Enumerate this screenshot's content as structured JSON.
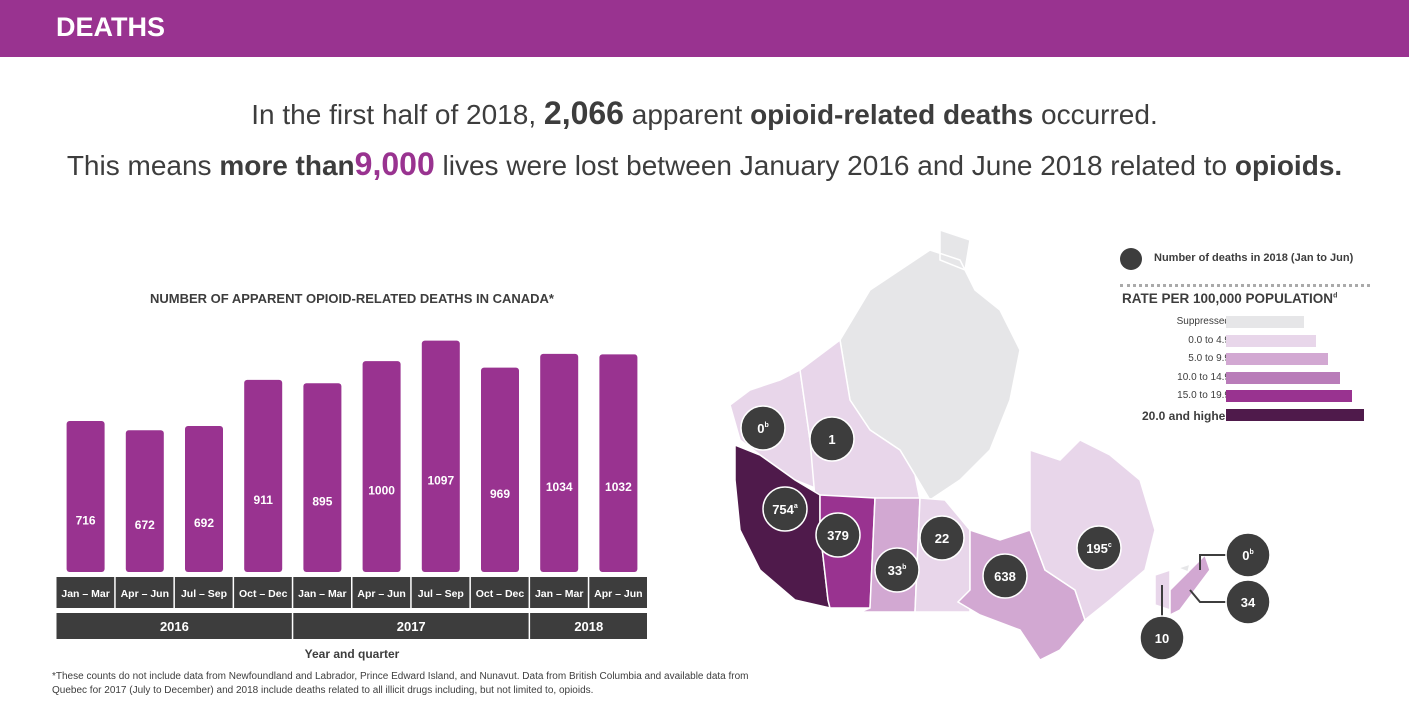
{
  "header": {
    "title": "DEATHS"
  },
  "headline": {
    "line1": {
      "pre": "In the first half of 2018,",
      "num": "2,066",
      "mid": "apparent",
      "bold": "opioid-related deaths",
      "post": "occurred."
    },
    "line2": {
      "pre": "This means",
      "bold": "more than",
      "num": "9,000",
      "mid": "lives were lost between January 2016 and June 2018 related to",
      "bold2": "opioids",
      "post": "."
    }
  },
  "chart_data": {
    "type": "bar",
    "title": "NUMBER OF APPARENT OPIOID-RELATED DEATHS IN CANADA*",
    "xlabel": "Year and quarter",
    "ylabel": "",
    "ylim": [
      0,
      1100
    ],
    "categories": [
      "Jan – Mar",
      "Apr – Jun",
      "Jul – Sep",
      "Oct – Dec",
      "Jan – Mar",
      "Apr – Jun",
      "Jul – Sep",
      "Oct – Dec",
      "Jan – Mar",
      "Apr – Jun"
    ],
    "years": [
      {
        "label": "2016",
        "span": 4
      },
      {
        "label": "2017",
        "span": 4
      },
      {
        "label": "2018",
        "span": 2
      }
    ],
    "values": [
      716,
      672,
      692,
      911,
      895,
      1000,
      1097,
      969,
      1034,
      1032
    ],
    "bar_color": "#993390"
  },
  "footnote": "*These counts do not include data from Newfoundland and Labrador, Prince Edward Island, and Nunavut. Data from British Columbia and available data from Quebec for 2017 (July to December) and 2018 include deaths related to all illicit drugs including, but not limited to, opioids.",
  "legend": {
    "circle_label": "Number of deaths in 2018 (Jan to Jun)",
    "rate_title": "RATE PER 100,000 POPULATION",
    "rate_sup": "d",
    "items": [
      {
        "label": "Suppressed",
        "color": "#e6e6e8"
      },
      {
        "label": "0.0 to 4.9",
        "color": "#e8d6ea"
      },
      {
        "label": "5.0 to 9.9",
        "color": "#d2a8d2"
      },
      {
        "label": "10.0 to 14.9",
        "color": "#b97cb9"
      },
      {
        "label": "15.0 to 19.9",
        "color": "#993390"
      },
      {
        "label": "20.0 and higher",
        "color": "#4f1a4b"
      }
    ]
  },
  "map": {
    "regions": [
      {
        "name": "Yukon",
        "value": "0",
        "sup": "b",
        "rate": 1
      },
      {
        "name": "Northwest Territories",
        "value": "1",
        "sup": "",
        "rate": 1
      },
      {
        "name": "British Columbia",
        "value": "754",
        "sup": "a",
        "rate": 5
      },
      {
        "name": "Alberta",
        "value": "379",
        "sup": "",
        "rate": 4
      },
      {
        "name": "Saskatchewan",
        "value": "33",
        "sup": "b",
        "rate": 2
      },
      {
        "name": "Manitoba",
        "value": "22",
        "sup": "",
        "rate": 1
      },
      {
        "name": "Ontario",
        "value": "638",
        "sup": "",
        "rate": 2
      },
      {
        "name": "Quebec",
        "value": "195",
        "sup": "c",
        "rate": 1
      },
      {
        "name": "Prince Edward Island",
        "value": "0",
        "sup": "b",
        "rate": 0
      },
      {
        "name": "Nova Scotia",
        "value": "34",
        "sup": "",
        "rate": 2
      },
      {
        "name": "New Brunswick",
        "value": "10",
        "sup": "",
        "rate": 1
      }
    ]
  }
}
